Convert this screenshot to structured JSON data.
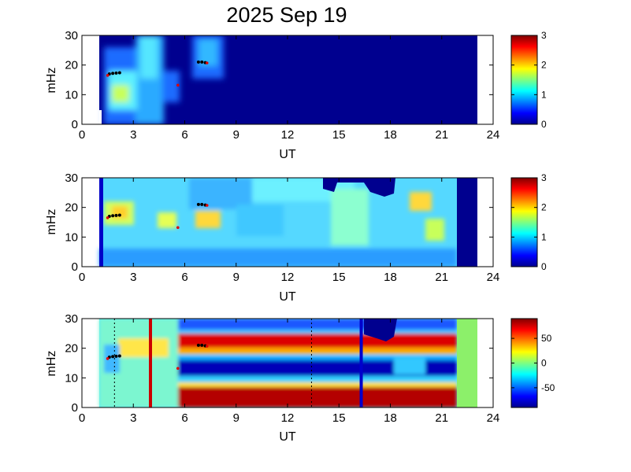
{
  "title": "2025 Sep 19",
  "chart_data": [
    {
      "type": "heatmap",
      "panel": "top",
      "xlabel": "UT",
      "ylabel": "mHz",
      "xlim": [
        0,
        24
      ],
      "ylim": [
        0,
        30
      ],
      "xticks": [
        0,
        3,
        6,
        9,
        12,
        15,
        18,
        21,
        24
      ],
      "yticks": [
        0,
        10,
        20,
        30
      ],
      "data_extent_ut": [
        1.0,
        23.0
      ],
      "colorbar": {
        "colormap": "jet",
        "range": [
          0,
          3
        ],
        "ticks": [
          0,
          1,
          2,
          3
        ]
      },
      "markers": {
        "black": [
          [
            1.6,
            17.0
          ],
          [
            1.8,
            17.2
          ],
          [
            2.0,
            17.3
          ],
          [
            2.2,
            17.4
          ],
          [
            6.8,
            21.0
          ],
          [
            7.0,
            21.0
          ],
          [
            7.2,
            20.8
          ]
        ],
        "red": [
          [
            1.5,
            16.5
          ],
          [
            5.6,
            13.2
          ],
          [
            7.3,
            20.7
          ]
        ]
      }
    },
    {
      "type": "heatmap",
      "panel": "middle",
      "xlabel": "UT",
      "ylabel": "mHz",
      "xlim": [
        0,
        24
      ],
      "ylim": [
        0,
        30
      ],
      "xticks": [
        0,
        3,
        6,
        9,
        12,
        15,
        18,
        21,
        24
      ],
      "yticks": [
        0,
        10,
        20,
        30
      ],
      "data_extent_ut": [
        1.0,
        23.0
      ],
      "colorbar": {
        "colormap": "jet",
        "range": [
          0,
          3
        ],
        "ticks": [
          0,
          1,
          2,
          3
        ]
      },
      "markers": {
        "black": [
          [
            1.6,
            17.0
          ],
          [
            1.8,
            17.2
          ],
          [
            2.0,
            17.3
          ],
          [
            2.2,
            17.4
          ],
          [
            6.8,
            21.0
          ],
          [
            7.0,
            21.0
          ],
          [
            7.2,
            20.8
          ]
        ],
        "red": [
          [
            1.5,
            16.5
          ],
          [
            5.6,
            13.2
          ],
          [
            7.3,
            20.7
          ]
        ]
      }
    },
    {
      "type": "heatmap",
      "panel": "bottom",
      "xlabel": "UT",
      "ylabel": "mHz",
      "xlim": [
        0,
        24
      ],
      "ylim": [
        0,
        30
      ],
      "xticks": [
        0,
        3,
        6,
        9,
        12,
        15,
        18,
        21,
        24
      ],
      "yticks": [
        0,
        10,
        20,
        30
      ],
      "data_extent_ut": [
        1.0,
        23.0
      ],
      "colorbar": {
        "colormap": "jet",
        "range": [
          -90,
          90
        ],
        "ticks": [
          -50,
          0,
          50
        ]
      },
      "vertical_lines": [
        {
          "ut": 4.0,
          "color": "#cc0000",
          "style": "solid"
        },
        {
          "ut": 16.3,
          "color": "#0000cc",
          "style": "solid"
        },
        {
          "ut": 1.9,
          "color": "#000000",
          "style": "dotted"
        },
        {
          "ut": 13.4,
          "color": "#000000",
          "style": "dotted"
        }
      ],
      "markers": {
        "black": [
          [
            1.6,
            17.0
          ],
          [
            1.8,
            17.2
          ],
          [
            2.0,
            17.3
          ],
          [
            2.2,
            17.4
          ],
          [
            6.8,
            21.0
          ],
          [
            7.0,
            21.0
          ],
          [
            7.2,
            20.8
          ]
        ],
        "red": [
          [
            1.5,
            16.5
          ],
          [
            5.6,
            13.2
          ],
          [
            7.3,
            20.7
          ]
        ]
      }
    }
  ]
}
